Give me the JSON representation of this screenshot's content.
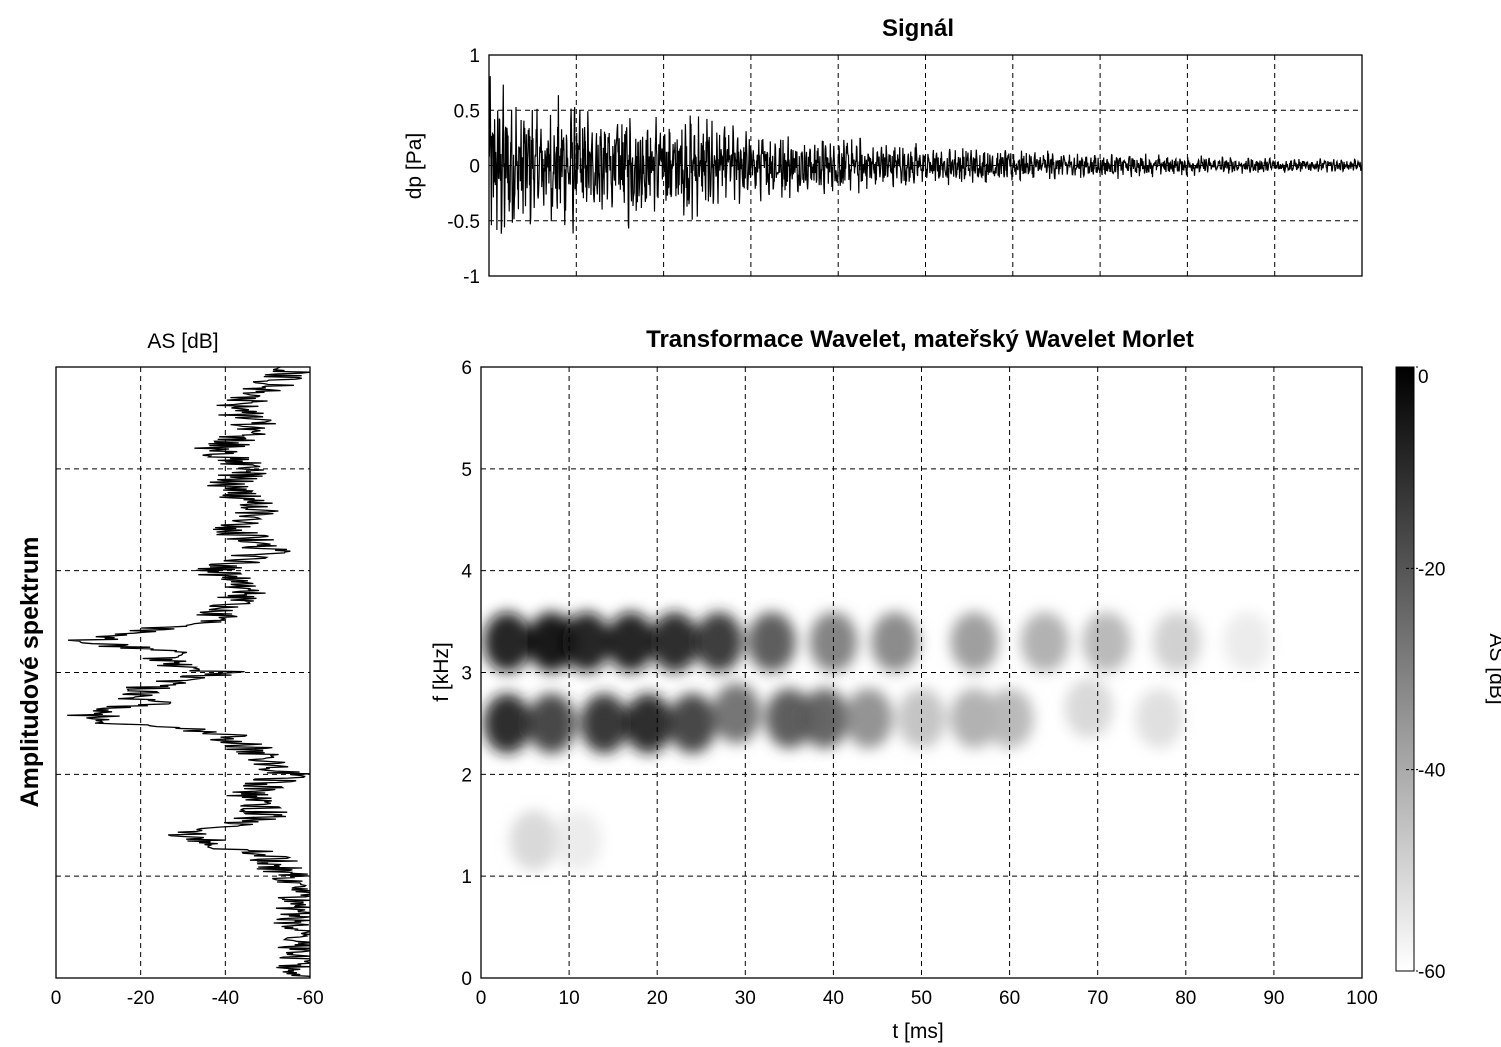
{
  "chart_data": [
    {
      "id": "signal",
      "type": "line",
      "title": "Signál",
      "ylabel": "dp [Pa]",
      "xlabel": "",
      "xlim": [
        0,
        100
      ],
      "ylim": [
        -1,
        1
      ],
      "x_ticks": [
        0,
        10,
        20,
        30,
        40,
        50,
        60,
        70,
        80,
        90,
        100
      ],
      "y_ticks": [
        "-1",
        "-0.5",
        "0",
        "0.5",
        "1"
      ],
      "grid": true,
      "envelope": {
        "t_ms": [
          1,
          3,
          6,
          9,
          12,
          16,
          20,
          24,
          30,
          40,
          50,
          60,
          70,
          80,
          90,
          100
        ],
        "amplitude": [
          0.95,
          0.72,
          0.62,
          0.68,
          0.55,
          0.6,
          0.52,
          0.55,
          0.35,
          0.3,
          0.22,
          0.17,
          0.13,
          0.1,
          0.08,
          0.06
        ]
      }
    },
    {
      "id": "spectrum",
      "type": "line",
      "title": "AS [dB]",
      "side_label": "Amplitudové spektrum",
      "xlim": [
        0,
        -60
      ],
      "ylim": [
        0,
        6
      ],
      "x_ticks": [
        "0",
        "-20",
        "-40",
        "-60"
      ],
      "grid": true,
      "f_khz": [
        0.0,
        0.3,
        0.6,
        0.9,
        1.0,
        1.2,
        1.4,
        1.6,
        1.8,
        2.0,
        2.2,
        2.4,
        2.5,
        2.6,
        2.7,
        2.8,
        2.9,
        3.0,
        3.1,
        3.2,
        3.3,
        3.4,
        3.5,
        3.6,
        3.8,
        4.0,
        4.2,
        4.4,
        4.6,
        4.8,
        5.0,
        5.2,
        5.4,
        5.6,
        5.8,
        6.0
      ],
      "as_db": [
        -58,
        -57,
        -57,
        -58,
        -55,
        -50,
        -30,
        -50,
        -45,
        -55,
        -48,
        -40,
        -15,
        -7,
        -22,
        -18,
        -25,
        -40,
        -25,
        -26,
        -6,
        -20,
        -35,
        -40,
        -45,
        -38,
        -50,
        -42,
        -48,
        -40,
        -45,
        -38,
        -48,
        -42,
        -50,
        -58
      ]
    },
    {
      "id": "wavelet",
      "type": "heatmap",
      "title": "Transformace Wavelet, mateřský Wavelet Morlet",
      "xlabel": "t [ms]",
      "ylabel": "f [kHz]",
      "xlim": [
        0,
        100
      ],
      "ylim": [
        0,
        6
      ],
      "x_ticks": [
        "0",
        "10",
        "20",
        "30",
        "40",
        "50",
        "60",
        "70",
        "80",
        "90",
        "100"
      ],
      "y_ticks": [
        "0",
        "1",
        "2",
        "3",
        "4",
        "5",
        "6"
      ],
      "grid": true,
      "colorbar": {
        "label": "AS [dB]",
        "range": [
          -60,
          0
        ],
        "ticks": [
          "0",
          "-20",
          "-40",
          "-60"
        ],
        "colors": [
          "#ffffff",
          "#000000"
        ]
      },
      "blobs": [
        {
          "t_ms": 3,
          "f_khz": 3.3,
          "as_db": -2
        },
        {
          "t_ms": 8,
          "f_khz": 3.3,
          "as_db": -1
        },
        {
          "t_ms": 12,
          "f_khz": 3.3,
          "as_db": -4
        },
        {
          "t_ms": 17,
          "f_khz": 3.3,
          "as_db": -3
        },
        {
          "t_ms": 22,
          "f_khz": 3.3,
          "as_db": -6
        },
        {
          "t_ms": 27,
          "f_khz": 3.3,
          "as_db": -10
        },
        {
          "t_ms": 33,
          "f_khz": 3.3,
          "as_db": -18
        },
        {
          "t_ms": 40,
          "f_khz": 3.3,
          "as_db": -28
        },
        {
          "t_ms": 47,
          "f_khz": 3.3,
          "as_db": -30
        },
        {
          "t_ms": 56,
          "f_khz": 3.3,
          "as_db": -35
        },
        {
          "t_ms": 64,
          "f_khz": 3.3,
          "as_db": -40
        },
        {
          "t_ms": 71,
          "f_khz": 3.3,
          "as_db": -42
        },
        {
          "t_ms": 79,
          "f_khz": 3.3,
          "as_db": -48
        },
        {
          "t_ms": 87,
          "f_khz": 3.3,
          "as_db": -55
        },
        {
          "t_ms": 3,
          "f_khz": 2.5,
          "as_db": -6
        },
        {
          "t_ms": 8,
          "f_khz": 2.5,
          "as_db": -12
        },
        {
          "t_ms": 14,
          "f_khz": 2.5,
          "as_db": -8
        },
        {
          "t_ms": 19,
          "f_khz": 2.5,
          "as_db": -6
        },
        {
          "t_ms": 24,
          "f_khz": 2.5,
          "as_db": -12
        },
        {
          "t_ms": 29,
          "f_khz": 2.6,
          "as_db": -24
        },
        {
          "t_ms": 35,
          "f_khz": 2.55,
          "as_db": -18
        },
        {
          "t_ms": 39,
          "f_khz": 2.55,
          "as_db": -20
        },
        {
          "t_ms": 44,
          "f_khz": 2.55,
          "as_db": -32
        },
        {
          "t_ms": 50,
          "f_khz": 2.55,
          "as_db": -45
        },
        {
          "t_ms": 56,
          "f_khz": 2.55,
          "as_db": -40
        },
        {
          "t_ms": 60,
          "f_khz": 2.55,
          "as_db": -42
        },
        {
          "t_ms": 69,
          "f_khz": 2.65,
          "as_db": -50
        },
        {
          "t_ms": 77,
          "f_khz": 2.55,
          "as_db": -52
        },
        {
          "t_ms": 6,
          "f_khz": 1.35,
          "as_db": -50
        },
        {
          "t_ms": 11,
          "f_khz": 1.35,
          "as_db": -55
        }
      ]
    }
  ]
}
